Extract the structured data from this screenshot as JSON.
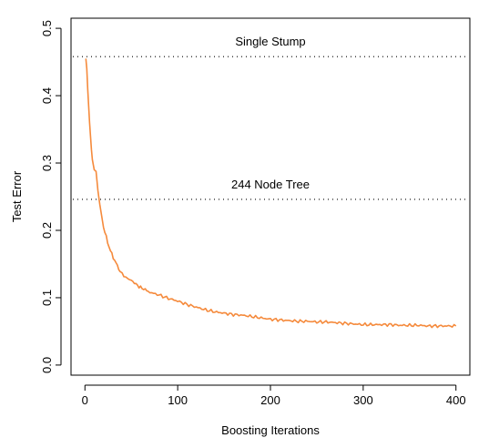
{
  "chart_data": {
    "type": "line",
    "xlabel": "Boosting Iterations",
    "ylabel": "Test Error",
    "xlim": [
      -15,
      415
    ],
    "ylim": [
      -0.015,
      0.515
    ],
    "x_ticks": [
      0,
      100,
      200,
      300,
      400
    ],
    "y_ticks": [
      0.0,
      0.1,
      0.2,
      0.3,
      0.4,
      0.5
    ],
    "y_tick_labels_rotated": true,
    "grid": false,
    "series": [
      {
        "color": "#f58a3c",
        "x": [
          1,
          2,
          3,
          4,
          5,
          6,
          7,
          8,
          10,
          12,
          14,
          16,
          18,
          20,
          23,
          26,
          29,
          32,
          35,
          38,
          42,
          46,
          50,
          55,
          60,
          65,
          70,
          80,
          90,
          100,
          110,
          120,
          130,
          140,
          150,
          160,
          170,
          180,
          190,
          200,
          210,
          220,
          230,
          240,
          250,
          260,
          270,
          280,
          290,
          300,
          310,
          320,
          330,
          340,
          350,
          360,
          370,
          380,
          390,
          400
        ],
        "y": [
          0.455,
          0.44,
          0.41,
          0.385,
          0.36,
          0.34,
          0.32,
          0.305,
          0.29,
          0.285,
          0.26,
          0.24,
          0.22,
          0.205,
          0.19,
          0.175,
          0.165,
          0.155,
          0.148,
          0.138,
          0.133,
          0.128,
          0.126,
          0.12,
          0.115,
          0.112,
          0.108,
          0.104,
          0.099,
          0.095,
          0.09,
          0.086,
          0.082,
          0.079,
          0.077,
          0.075,
          0.074,
          0.072,
          0.07,
          0.068,
          0.067,
          0.066,
          0.065,
          0.065,
          0.064,
          0.064,
          0.063,
          0.062,
          0.061,
          0.06,
          0.06,
          0.06,
          0.06,
          0.059,
          0.059,
          0.059,
          0.058,
          0.058,
          0.058,
          0.058
        ]
      }
    ],
    "reference_lines": [
      {
        "y": 0.458,
        "label": "Single Stump",
        "label_x": 200,
        "style": "dotted"
      },
      {
        "y": 0.246,
        "label": "244 Node Tree",
        "label_x": 200,
        "style": "dotted"
      }
    ]
  }
}
